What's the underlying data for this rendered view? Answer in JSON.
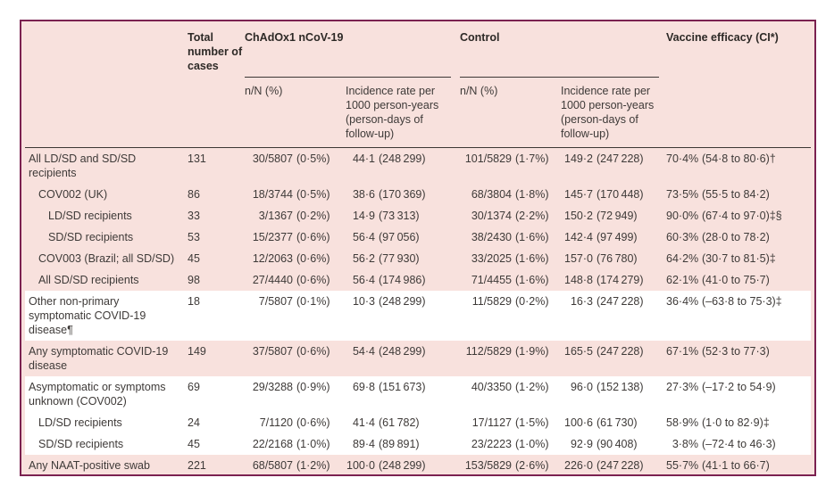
{
  "table": {
    "header": {
      "total": "Total number of cases",
      "group_vaccine": "ChAdOx1 nCoV-19",
      "group_control": "Control",
      "efficacy": "Vaccine efficacy (CI*)",
      "sub_nn": "n/N (%)",
      "sub_incidence": "Incidence rate per 1000 person-years (person-days of follow-up)"
    },
    "colors": {
      "table_background": "#f8e1dd",
      "white_row": "#ffffff",
      "outer_border": "#7b2150",
      "rule": "#3c3734",
      "text": "#3e3a38"
    },
    "rows": [
      {
        "label": "All LD/SD and SD/SD recipients",
        "indent": 0,
        "bg": "pink",
        "total": "131",
        "ch_nn": "30/5807",
        "ch_pct": "(0·5%)",
        "ch_rate": "44·1",
        "ch_days": "(248 299)",
        "co_nn": "101/5829",
        "co_pct": "(1·7%)",
        "co_rate": "149·2",
        "co_days": "(247 228)",
        "ve": "70·4%",
        "ve_ci": "(54·8 to 80·6)†"
      },
      {
        "label": "COV002 (UK)",
        "indent": 1,
        "bg": "pink",
        "total": "86",
        "ch_nn": "18/3744",
        "ch_pct": "(0·5%)",
        "ch_rate": "38·6",
        "ch_days": "(170 369)",
        "co_nn": "68/3804",
        "co_pct": "(1·8%)",
        "co_rate": "145·7",
        "co_days": "(170 448)",
        "ve": "73·5%",
        "ve_ci": "(55·5 to 84·2)"
      },
      {
        "label": "LD/SD recipients",
        "indent": 2,
        "bg": "pink",
        "total": "33",
        "ch_nn": "3/1367",
        "ch_pct": "(0·2%)",
        "ch_rate": "14·9",
        "ch_days": "(73 313)",
        "co_nn": "30/1374",
        "co_pct": "(2·2%)",
        "co_rate": "150·2",
        "co_days": "(72 949)",
        "ve": "90·0%",
        "ve_ci": "(67·4 to 97·0)‡§"
      },
      {
        "label": "SD/SD recipients",
        "indent": 2,
        "bg": "pink",
        "total": "53",
        "ch_nn": "15/2377",
        "ch_pct": "(0·6%)",
        "ch_rate": "56·4",
        "ch_days": "(97 056)",
        "co_nn": "38/2430",
        "co_pct": "(1·6%)",
        "co_rate": "142·4",
        "co_days": "(97 499)",
        "ve": "60·3%",
        "ve_ci": "(28·0 to 78·2)"
      },
      {
        "label": "COV003 (Brazil; all SD/SD)",
        "indent": 1,
        "bg": "pink",
        "total": "45",
        "ch_nn": "12/2063",
        "ch_pct": "(0·6%)",
        "ch_rate": "56·2",
        "ch_days": "(77 930)",
        "co_nn": "33/2025",
        "co_pct": "(1·6%)",
        "co_rate": "157·0",
        "co_days": "(76 780)",
        "ve": "64·2%",
        "ve_ci": "(30·7 to 81·5)‡"
      },
      {
        "label": "All SD/SD recipients",
        "indent": 1,
        "bg": "pink",
        "total": "98",
        "ch_nn": "27/4440",
        "ch_pct": "(0·6%)",
        "ch_rate": "56·4",
        "ch_days": "(174 986)",
        "co_nn": "71/4455",
        "co_pct": "(1·6%)",
        "co_rate": "148·8",
        "co_days": "(174 279)",
        "ve": "62·1%",
        "ve_ci": "(41·0 to 75·7)"
      },
      {
        "label": "Other non-primary symptomatic COVID-19 disease¶",
        "indent": 0,
        "bg": "white",
        "total": "18",
        "ch_nn": "7/5807",
        "ch_pct": "(0·1%)",
        "ch_rate": "10·3",
        "ch_days": "(248 299)",
        "co_nn": "11/5829",
        "co_pct": "(0·2%)",
        "co_rate": "16·3",
        "co_days": "(247 228)",
        "ve": "36·4%",
        "ve_ci": "(–63·8 to 75·3)‡"
      },
      {
        "label": "Any symptomatic COVID-19 disease",
        "indent": 0,
        "bg": "pink",
        "total": "149",
        "ch_nn": "37/5807",
        "ch_pct": "(0·6%)",
        "ch_rate": "54·4",
        "ch_days": "(248 299)",
        "co_nn": "112/5829",
        "co_pct": "(1·9%)",
        "co_rate": "165·5",
        "co_days": "(247 228)",
        "ve": "67·1%",
        "ve_ci": "(52·3 to 77·3)"
      },
      {
        "label": "Asymptomatic or symptoms unknown (COV002)",
        "indent": 0,
        "bg": "white",
        "total": "69",
        "ch_nn": "29/3288",
        "ch_pct": "(0·9%)",
        "ch_rate": "69·8",
        "ch_days": "(151 673)",
        "co_nn": "40/3350",
        "co_pct": "(1·2%)",
        "co_rate": "96·0",
        "co_days": "(152 138)",
        "ve": "27·3%",
        "ve_ci": "(–17·2 to 54·9)"
      },
      {
        "label": "LD/SD recipients",
        "indent": 1,
        "bg": "white",
        "total": "24",
        "ch_nn": "7/1120",
        "ch_pct": "(0·6%)",
        "ch_rate": "41·4",
        "ch_days": "(61 782)",
        "co_nn": "17/1127",
        "co_pct": "(1·5%)",
        "co_rate": "100·6",
        "co_days": "(61 730)",
        "ve": "58·9%",
        "ve_ci": "(1·0 to 82·9)‡"
      },
      {
        "label": "SD/SD recipients",
        "indent": 1,
        "bg": "white",
        "total": "45",
        "ch_nn": "22/2168",
        "ch_pct": "(1·0%)",
        "ch_rate": "89·4",
        "ch_days": "(89 891)",
        "co_nn": "23/2223",
        "co_pct": "(1·0%)",
        "co_rate": "92·9",
        "co_days": "(90 408)",
        "ve": "3·8%",
        "ve_ci": "(–72·4 to 46·3)"
      },
      {
        "label": "Any NAAT-positive swab",
        "indent": 0,
        "bg": "pink",
        "total": "221",
        "ch_nn": "68/5807",
        "ch_pct": "(1·2%)",
        "ch_rate": "100·0",
        "ch_days": "(248 299)",
        "co_nn": "153/5829",
        "co_pct": "(2·6%)",
        "co_rate": "226·0",
        "co_days": "(247 228)",
        "ve": "55·7%",
        "ve_ci": "(41·1 to 66·7)"
      }
    ]
  }
}
